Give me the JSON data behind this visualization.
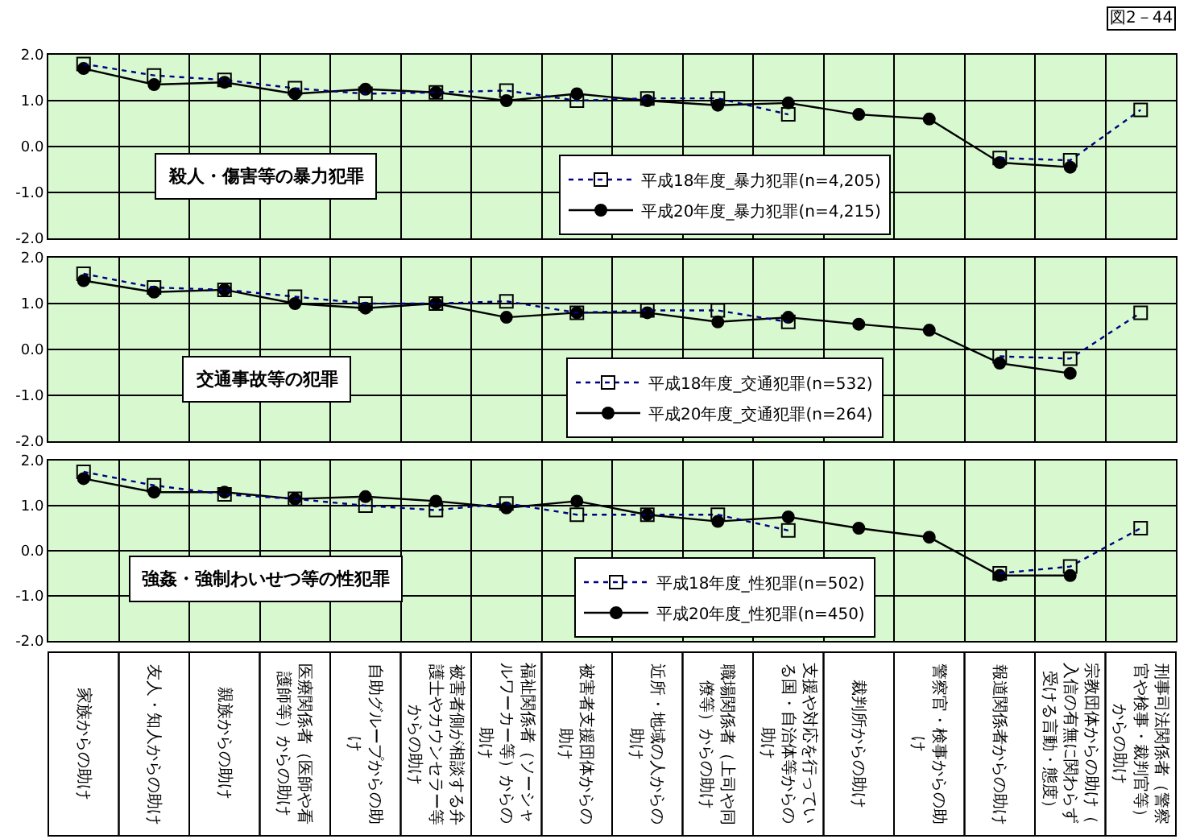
{
  "chart_data": [
    {
      "type": "line",
      "title": "殺人・傷害等の暴力犯罪",
      "annotations": [
        "図2－44"
      ],
      "categories": [
        "家族からの助け",
        "友人・知人からの助け",
        "親族からの助け",
        "医療関係者（医師や看護師等）からの助け",
        "自助グループからの助け",
        "被害者側が相談する弁護士やカウンセラー等からの助け",
        "福祉関係者（ソーシャルワーカー等）からの助け",
        "被害者支援団体からの助け",
        "近所・地域の人からの助け",
        "職場関係者（上司や同僚等）からの助け",
        "支援や対応を行っている国・自治体等からの助け",
        "裁判所からの助け",
        "警察官・検事からの助け",
        "報道関係者からの助け",
        "宗教団体からの助け（入信の有無に関わらず受ける言動・態度）",
        "刑事司法関係者（警察官や検事・裁判官等）からの助け"
      ],
      "series": [
        {
          "name": "平成18年度_暴力犯罪(n=4,205)",
          "color": "#000080",
          "marker": "square",
          "line_style": "dotted",
          "values": [
            1.8,
            1.55,
            1.45,
            1.27,
            1.15,
            1.18,
            1.22,
            1.0,
            1.05,
            1.05,
            0.7,
            null,
            null,
            -0.25,
            -0.3,
            0.8
          ]
        },
        {
          "name": "平成20年度_暴力犯罪(n=4,215)",
          "color": "#000000",
          "marker": "circle",
          "line_style": "solid",
          "values": [
            1.7,
            1.35,
            1.4,
            1.15,
            1.25,
            1.18,
            1.0,
            1.15,
            1.0,
            0.9,
            0.95,
            0.7,
            0.6,
            -0.35,
            -0.45,
            null
          ]
        }
      ],
      "ylim": [
        -2,
        2
      ],
      "yticks": [
        {
          "value": -2,
          "label": "-2.0"
        },
        {
          "value": -1,
          "label": "-1.0"
        },
        {
          "value": 0,
          "label": "0.0"
        },
        {
          "value": 1,
          "label": "1.0"
        },
        {
          "value": 2,
          "label": "2.0"
        }
      ],
      "grid": true,
      "legend": "bottom",
      "tick_labels": "y"
    },
    {
      "type": "line",
      "title": "交通事故等の犯罪",
      "categories": [
        "家族からの助け",
        "友人・知人からの助け",
        "親族からの助け",
        "医療関係者（医師や看護師等）からの助け",
        "自助グループからの助け",
        "被害者側が相談する弁護士やカウンセラー等からの助け",
        "福祉関係者（ソーシャルワーカー等）からの助け",
        "被害者支援団体からの助け",
        "近所・地域の人からの助け",
        "職場関係者（上司や同僚等）からの助け",
        "支援や対応を行っている国・自治体等からの助け",
        "裁判所からの助け",
        "警察官・検事からの助け",
        "報道関係者からの助け",
        "宗教団体からの助け（入信の有無に関わらず受ける言動・態度）",
        "刑事司法関係者（警察官や検事・裁判官等）からの助け"
      ],
      "series": [
        {
          "name": "平成18年度_交通犯罪(n=532)",
          "color": "#000080",
          "marker": "square",
          "line_style": "dotted",
          "values": [
            1.65,
            1.35,
            1.3,
            1.15,
            1.0,
            1.0,
            1.05,
            0.8,
            0.85,
            0.85,
            0.6,
            null,
            null,
            -0.15,
            -0.2,
            0.8
          ]
        },
        {
          "name": "平成20年度_交通犯罪(n=264)",
          "color": "#000000",
          "marker": "circle",
          "line_style": "solid",
          "values": [
            1.5,
            1.25,
            1.3,
            1.0,
            0.9,
            1.0,
            0.7,
            0.8,
            0.8,
            0.6,
            0.7,
            0.55,
            0.42,
            -0.3,
            -0.52,
            null
          ]
        }
      ],
      "ylim": [
        -2,
        2
      ],
      "yticks": [
        {
          "value": -2,
          "label": "-2.0"
        },
        {
          "value": -1,
          "label": "-1.0"
        },
        {
          "value": 0,
          "label": "0.0"
        },
        {
          "value": 1,
          "label": "1.0"
        },
        {
          "value": 2,
          "label": "2.0"
        }
      ],
      "grid": true,
      "legend": "bottom",
      "tick_labels": "y"
    },
    {
      "type": "line",
      "title": "強姦・強制わいせつ等の性犯罪",
      "categories": [
        "家族からの助け",
        "友人・知人からの助け",
        "親族からの助け",
        "医療関係者（医師や看護師等）からの助け",
        "自助グループからの助け",
        "被害者側が相談する弁護士やカウンセラー等からの助け",
        "福祉関係者（ソーシャルワーカー等）からの助け",
        "被害者支援団体からの助け",
        "近所・地域の人からの助け",
        "職場関係者（上司や同僚等）からの助け",
        "支援や対応を行っている国・自治体等からの助け",
        "裁判所からの助け",
        "警察官・検事からの助け",
        "報道関係者からの助け",
        "宗教団体からの助け（入信の有無に関わらず受ける言動・態度）",
        "刑事司法関係者（警察官や検事・裁判官等）からの助け"
      ],
      "series": [
        {
          "name": "平成18年度_性犯罪(n=502)",
          "color": "#000080",
          "marker": "square",
          "line_style": "dotted",
          "values": [
            1.75,
            1.45,
            1.25,
            1.15,
            1.0,
            0.9,
            1.05,
            0.8,
            0.8,
            0.8,
            0.45,
            null,
            null,
            -0.5,
            -0.35,
            0.5
          ]
        },
        {
          "name": "平成20年度_性犯罪(n=450)",
          "color": "#000000",
          "marker": "circle",
          "line_style": "solid",
          "values": [
            1.6,
            1.3,
            1.3,
            1.15,
            1.2,
            1.1,
            0.95,
            1.1,
            0.8,
            0.65,
            0.75,
            0.5,
            0.3,
            -0.55,
            -0.55,
            null
          ]
        }
      ],
      "ylim": [
        -2,
        2
      ],
      "yticks": [
        {
          "value": -2,
          "label": "-2.0"
        },
        {
          "value": -1,
          "label": "-1.0"
        },
        {
          "value": 0,
          "label": "0.0"
        },
        {
          "value": 1,
          "label": "1.0"
        },
        {
          "value": 2,
          "label": "2.0"
        }
      ],
      "grid": true,
      "legend": "bottom"
    }
  ]
}
